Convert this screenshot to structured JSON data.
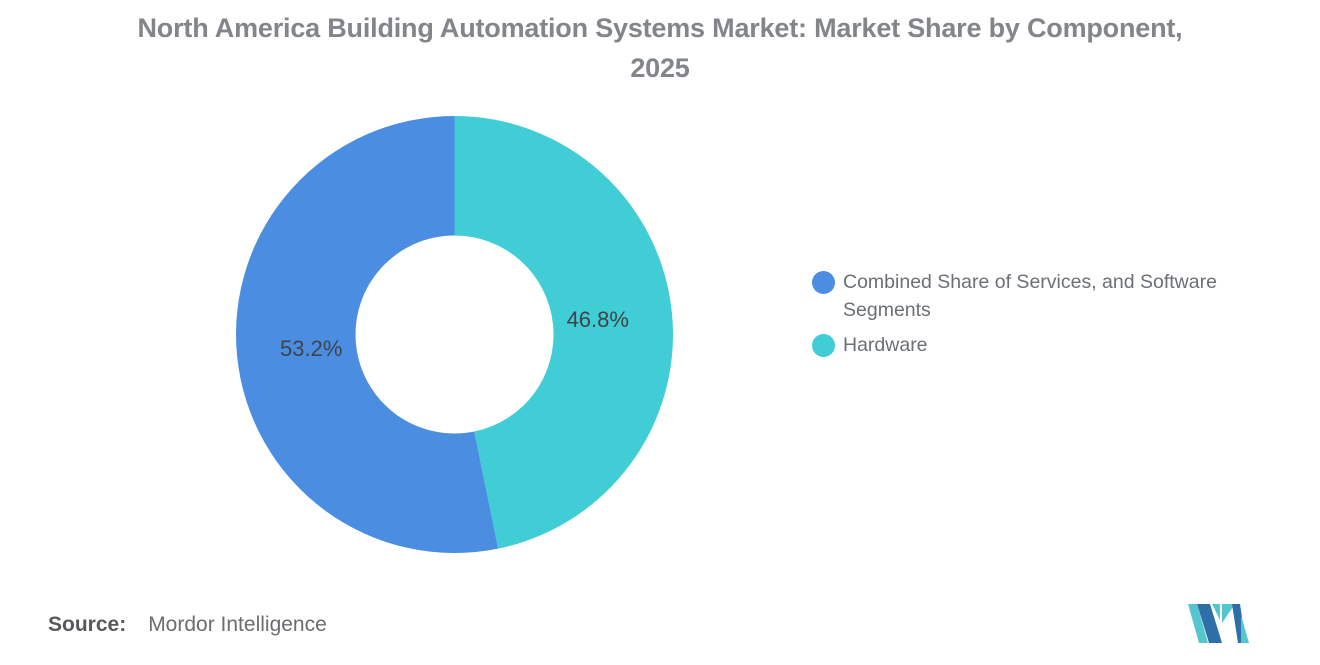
{
  "chart_data": {
    "type": "pie",
    "subtype": "donut",
    "title": "North America Building Automation Systems Market: Market Share by Component, 2025",
    "segments": [
      {
        "label": "Combined Share of Services, and Software Segments",
        "value": 53.2,
        "color": "#4A8DE1"
      },
      {
        "label": "Hardware",
        "value": 46.8,
        "color": "#40CDD5"
      }
    ],
    "display_labels": [
      "53.2%",
      "46.8%"
    ],
    "unit": "%",
    "layout": {
      "slice_draw_order": [
        1,
        0
      ],
      "start_angle_deg": 0,
      "direction": "clockwise",
      "outer_radius": 218.5,
      "inner_radius": 99,
      "label_radius": 144,
      "legend_position": "right",
      "label_position": "inside-ring"
    }
  },
  "footer": {
    "source_prefix": "Source:",
    "source_text": "Mordor Intelligence"
  },
  "branding": {
    "logo_name": "mordor-intelligence-logo",
    "logo_blue": "#2E6FA8",
    "logo_teal": "#55C6CE"
  },
  "colors": {
    "title_text": "#828589",
    "legend_text": "#6B7076",
    "slice_label_text": "#3F4449",
    "background": "#FFFFFF"
  }
}
